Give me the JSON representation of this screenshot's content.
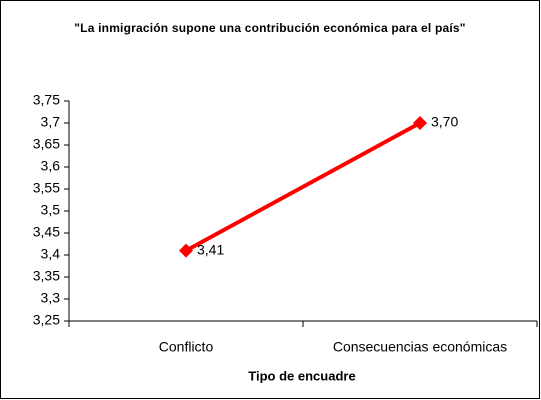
{
  "chart_data": {
    "type": "line",
    "title": "\"La inmigración supone una contribución económica para el país\"",
    "x_label": "Tipo de encuadre",
    "categories": [
      "Conflicto",
      "Consecuencias económicas"
    ],
    "values": [
      3.41,
      3.7
    ],
    "value_labels": [
      "3,41",
      "3,70"
    ],
    "color": "#ff0000",
    "ylim": [
      3.25,
      3.75
    ],
    "yticks": [
      {
        "value": 3.25,
        "label": "3,25"
      },
      {
        "value": 3.3,
        "label": "3,3"
      },
      {
        "value": 3.35,
        "label": "3,35"
      },
      {
        "value": 3.4,
        "label": "3,4"
      },
      {
        "value": 3.45,
        "label": "3,45"
      },
      {
        "value": 3.5,
        "label": "3,5"
      },
      {
        "value": 3.55,
        "label": "3,55"
      },
      {
        "value": 3.6,
        "label": "3,6"
      },
      {
        "value": 3.65,
        "label": "3,65"
      },
      {
        "value": 3.7,
        "label": "3,7"
      },
      {
        "value": 3.75,
        "label": "3,75"
      }
    ],
    "grid": false
  }
}
